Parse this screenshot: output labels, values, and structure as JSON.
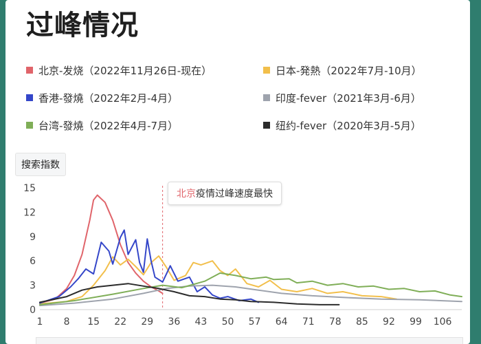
{
  "page_title": "过峰情况",
  "y_button_label": "搜索指数",
  "annotation": {
    "highlight": "北京",
    "rest": "疫情过峰速度最快"
  },
  "legend": [
    {
      "label": "北京-发烧（2022年11月26日-现在）",
      "color": "#e0646a"
    },
    {
      "label": "日本-発熱（2022年7月-10月）",
      "color": "#f2bf4b"
    },
    {
      "label": "香港-發燒（2022年2月-4月）",
      "color": "#3446c9"
    },
    {
      "label": "印度-fever（2021年3月-6月）",
      "color": "#9ea3ad"
    },
    {
      "label": "台湾-發燒（2022年4月-7月）",
      "color": "#7fae57"
    },
    {
      "label": "纽约-fever（2020年3月-5月）",
      "color": "#2b2b2b"
    }
  ],
  "chart_data": {
    "type": "line",
    "title": "",
    "xlabel": "",
    "ylabel": "搜索指数",
    "x_ticks": [
      1,
      8,
      15,
      22,
      29,
      36,
      43,
      50,
      57,
      64,
      71,
      78,
      85,
      92,
      99,
      106
    ],
    "y_ticks": [
      0,
      3,
      6,
      9,
      12,
      15
    ],
    "xlim": [
      1,
      111
    ],
    "ylim": [
      0,
      15
    ],
    "grid": false,
    "marker_x": 33,
    "series": [
      {
        "name": "北京-发烧（2022年11月26日-现在）",
        "color": "#e0646a",
        "points": [
          [
            1,
            0.8
          ],
          [
            5,
            1.3
          ],
          [
            8,
            2.6
          ],
          [
            10,
            4.2
          ],
          [
            12,
            6.8
          ],
          [
            14,
            11.0
          ],
          [
            15,
            13.5
          ],
          [
            16,
            14.1
          ],
          [
            18,
            13.2
          ],
          [
            20,
            11.0
          ],
          [
            22,
            8.0
          ],
          [
            24,
            5.8
          ],
          [
            26,
            4.5
          ],
          [
            28,
            3.5
          ],
          [
            30,
            2.8
          ],
          [
            32,
            2.3
          ],
          [
            33,
            2.0
          ]
        ]
      },
      {
        "name": "日本-発熱（2022年7月-10月）",
        "color": "#f2bf4b",
        "points": [
          [
            1,
            0.7
          ],
          [
            8,
            1.0
          ],
          [
            12,
            1.6
          ],
          [
            15,
            3.0
          ],
          [
            18,
            4.8
          ],
          [
            20,
            6.5
          ],
          [
            22,
            5.5
          ],
          [
            24,
            6.2
          ],
          [
            26,
            5.3
          ],
          [
            28,
            4.3
          ],
          [
            30,
            5.8
          ],
          [
            32,
            6.6
          ],
          [
            34,
            5.2
          ],
          [
            36,
            3.6
          ],
          [
            39,
            4.2
          ],
          [
            41,
            5.8
          ],
          [
            43,
            5.5
          ],
          [
            46,
            6.0
          ],
          [
            48,
            4.8
          ],
          [
            50,
            4.2
          ],
          [
            52,
            5.0
          ],
          [
            55,
            3.2
          ],
          [
            58,
            2.8
          ],
          [
            61,
            3.6
          ],
          [
            64,
            2.5
          ],
          [
            68,
            2.2
          ],
          [
            72,
            2.6
          ],
          [
            76,
            2.0
          ],
          [
            80,
            2.2
          ],
          [
            85,
            1.7
          ],
          [
            90,
            1.6
          ],
          [
            94,
            1.3
          ]
        ]
      },
      {
        "name": "香港-發燒（2022年2月-4月）",
        "color": "#3446c9",
        "points": [
          [
            1,
            0.8
          ],
          [
            6,
            1.6
          ],
          [
            9,
            2.8
          ],
          [
            11,
            3.8
          ],
          [
            13,
            5.0
          ],
          [
            15,
            4.4
          ],
          [
            17,
            8.3
          ],
          [
            19,
            7.2
          ],
          [
            20,
            5.6
          ],
          [
            22,
            8.9
          ],
          [
            23,
            9.8
          ],
          [
            24,
            6.8
          ],
          [
            26,
            8.6
          ],
          [
            27,
            5.8
          ],
          [
            28,
            4.6
          ],
          [
            29,
            8.7
          ],
          [
            30,
            6.0
          ],
          [
            31,
            4.0
          ],
          [
            33,
            3.4
          ],
          [
            35,
            5.4
          ],
          [
            37,
            3.5
          ],
          [
            40,
            4.0
          ],
          [
            42,
            2.2
          ],
          [
            44,
            2.8
          ],
          [
            46,
            1.8
          ],
          [
            48,
            1.4
          ],
          [
            50,
            1.6
          ],
          [
            53,
            1.1
          ],
          [
            56,
            1.3
          ],
          [
            58,
            0.9
          ]
        ]
      },
      {
        "name": "印度-fever（2021年3月-6月）",
        "color": "#9ea3ad",
        "points": [
          [
            1,
            0.5
          ],
          [
            10,
            0.8
          ],
          [
            20,
            1.3
          ],
          [
            28,
            2.0
          ],
          [
            34,
            2.6
          ],
          [
            40,
            2.9
          ],
          [
            46,
            3.0
          ],
          [
            52,
            2.8
          ],
          [
            58,
            2.4
          ],
          [
            64,
            2.0
          ],
          [
            72,
            1.7
          ],
          [
            80,
            1.5
          ],
          [
            90,
            1.3
          ],
          [
            100,
            1.2
          ],
          [
            111,
            1.0
          ]
        ]
      },
      {
        "name": "台湾-發燒（2022年4月-7月）",
        "color": "#7fae57",
        "points": [
          [
            1,
            0.6
          ],
          [
            10,
            1.1
          ],
          [
            20,
            1.9
          ],
          [
            28,
            2.6
          ],
          [
            33,
            3.0
          ],
          [
            38,
            2.7
          ],
          [
            44,
            3.5
          ],
          [
            48,
            4.5
          ],
          [
            52,
            4.2
          ],
          [
            56,
            3.8
          ],
          [
            60,
            4.0
          ],
          [
            62,
            3.7
          ],
          [
            66,
            3.8
          ],
          [
            68,
            3.3
          ],
          [
            72,
            3.5
          ],
          [
            76,
            3.0
          ],
          [
            80,
            3.2
          ],
          [
            84,
            2.8
          ],
          [
            88,
            2.9
          ],
          [
            92,
            2.5
          ],
          [
            96,
            2.6
          ],
          [
            100,
            2.2
          ],
          [
            104,
            2.3
          ],
          [
            108,
            1.8
          ],
          [
            111,
            1.6
          ]
        ]
      },
      {
        "name": "纽约-fever（2020年3月-5月）",
        "color": "#2b2b2b",
        "points": [
          [
            1,
            0.9
          ],
          [
            8,
            1.6
          ],
          [
            12,
            2.4
          ],
          [
            16,
            2.8
          ],
          [
            20,
            3.0
          ],
          [
            24,
            3.2
          ],
          [
            28,
            2.9
          ],
          [
            32,
            2.6
          ],
          [
            36,
            2.2
          ],
          [
            40,
            1.7
          ],
          [
            44,
            1.6
          ],
          [
            48,
            1.3
          ],
          [
            52,
            1.2
          ],
          [
            56,
            1.0
          ],
          [
            62,
            0.9
          ],
          [
            68,
            0.7
          ],
          [
            74,
            0.6
          ],
          [
            79,
            0.6
          ]
        ]
      }
    ]
  }
}
